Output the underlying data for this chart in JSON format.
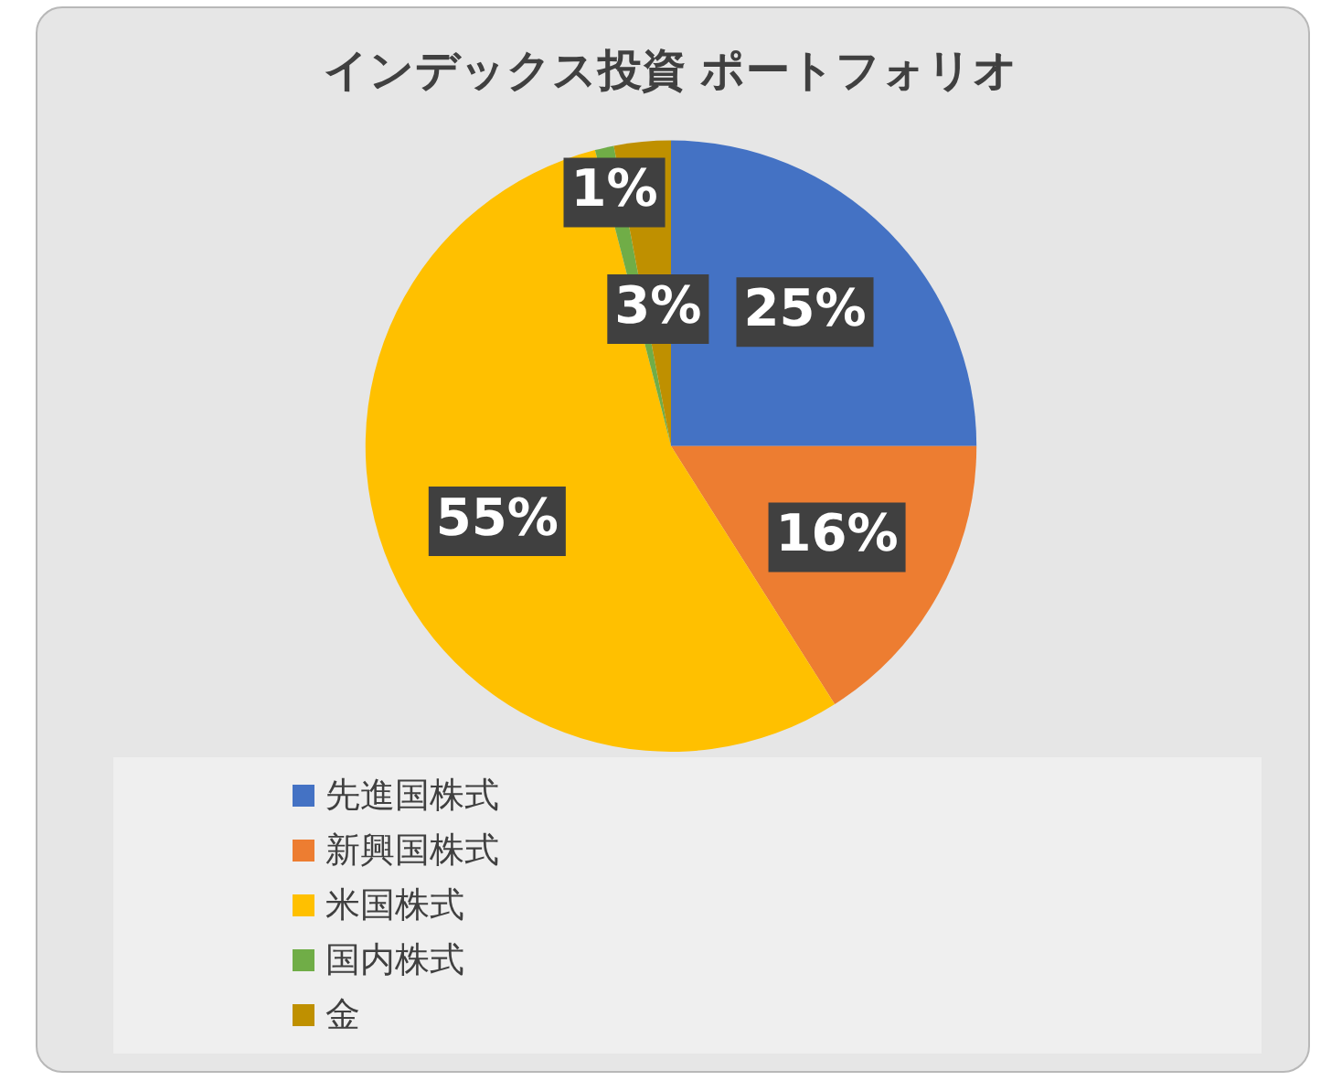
{
  "chart_data": {
    "type": "pie",
    "title": "インデックス投資 ポートフォリオ",
    "categories": [
      "先進国株式",
      "新興国株式",
      "米国株式",
      "国内株式",
      "金"
    ],
    "values": [
      25,
      16,
      55,
      1,
      3
    ],
    "colors": [
      "#4472c4",
      "#ed7d31",
      "#ffc000",
      "#70ad47",
      "#bf9000"
    ],
    "value_labels": [
      "25%",
      "16%",
      "55%",
      "1%",
      "3%"
    ],
    "legend": "bottom"
  }
}
